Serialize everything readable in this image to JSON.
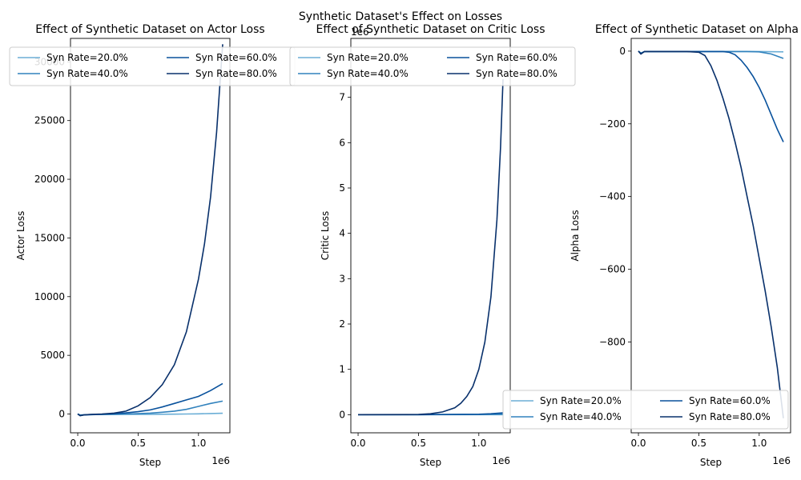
{
  "suptitle": "Synthetic Dataset's Effect on Losses",
  "palette": [
    "#6baed6",
    "#3182bd",
    "#08519c",
    "#08306b"
  ],
  "chart_data": [
    {
      "type": "line",
      "title": "Effect of Synthetic Dataset on Actor Loss",
      "xlabel": "Step",
      "ylabel": "Actor Loss",
      "x_multiplier": "1e6",
      "y_multiplier": "",
      "xlim": [
        -0.06,
        1.26
      ],
      "ylim": [
        -1600,
        32000
      ],
      "xticks": [
        0.0,
        0.5,
        1.0
      ],
      "xtick_labels": [
        "0.0",
        "0.5",
        "1.0"
      ],
      "yticks": [
        0,
        5000,
        10000,
        15000,
        20000,
        25000,
        30000
      ],
      "ytick_labels": [
        "0",
        "5000",
        "10000",
        "15000",
        "20000",
        "25000",
        "30000"
      ],
      "legend": "top-left",
      "series": [
        {
          "name": "Syn Rate=20.0%",
          "x": [
            0,
            0.02,
            0.05,
            0.1,
            0.2,
            0.3,
            0.4,
            0.5,
            0.6,
            0.7,
            0.8,
            0.9,
            1.0,
            1.1,
            1.2
          ],
          "y": [
            0,
            -80,
            -60,
            -50,
            -40,
            -40,
            -35,
            -30,
            -25,
            -20,
            -10,
            0,
            15,
            40,
            60
          ]
        },
        {
          "name": "Syn Rate=40.0%",
          "x": [
            0,
            0.02,
            0.05,
            0.1,
            0.2,
            0.3,
            0.4,
            0.5,
            0.6,
            0.7,
            0.8,
            0.9,
            1.0,
            1.1,
            1.2
          ],
          "y": [
            0,
            -100,
            -70,
            -50,
            -40,
            -20,
            0,
            30,
            80,
            150,
            250,
            400,
            650,
            900,
            1100
          ]
        },
        {
          "name": "Syn Rate=60.0%",
          "x": [
            0,
            0.02,
            0.05,
            0.1,
            0.2,
            0.3,
            0.4,
            0.5,
            0.6,
            0.7,
            0.8,
            0.9,
            1.0,
            1.1,
            1.2
          ],
          "y": [
            0,
            -120,
            -80,
            -50,
            -20,
            30,
            100,
            200,
            350,
            600,
            900,
            1200,
            1500,
            2000,
            2600
          ]
        },
        {
          "name": "Syn Rate=80.0%",
          "x": [
            0,
            0.02,
            0.05,
            0.1,
            0.2,
            0.3,
            0.4,
            0.5,
            0.6,
            0.7,
            0.8,
            0.9,
            1.0,
            1.05,
            1.1,
            1.15,
            1.2
          ],
          "y": [
            0,
            -150,
            -80,
            -30,
            0,
            80,
            250,
            700,
            1400,
            2500,
            4200,
            7000,
            11500,
            14500,
            18500,
            24000,
            31500
          ]
        }
      ]
    },
    {
      "type": "line",
      "title": "Effect of Synthetic Dataset on Critic Loss",
      "xlabel": "Step",
      "ylabel": "Critic Loss",
      "x_multiplier": "1e6",
      "y_multiplier": "1e6",
      "xlim": [
        -0.06,
        1.26
      ],
      "ylim": [
        -0.4,
        8.3
      ],
      "xticks": [
        0.0,
        0.5,
        1.0
      ],
      "xtick_labels": [
        "0.0",
        "0.5",
        "1.0"
      ],
      "yticks": [
        0,
        1,
        2,
        3,
        4,
        5,
        6,
        7
      ],
      "ytick_labels": [
        "0",
        "1",
        "2",
        "3",
        "4",
        "5",
        "6",
        "7"
      ],
      "legend": "top-left",
      "series": [
        {
          "name": "Syn Rate=20.0%",
          "x": [
            0,
            0.5,
            1.0,
            1.2
          ],
          "y": [
            0,
            0,
            0,
            0
          ]
        },
        {
          "name": "Syn Rate=40.0%",
          "x": [
            0,
            0.5,
            1.0,
            1.2
          ],
          "y": [
            0,
            0,
            0.005,
            0.01
          ]
        },
        {
          "name": "Syn Rate=60.0%",
          "x": [
            0,
            0.5,
            1.0,
            1.1,
            1.2
          ],
          "y": [
            0,
            0,
            0.01,
            0.02,
            0.04
          ]
        },
        {
          "name": "Syn Rate=80.0%",
          "x": [
            0,
            0.4,
            0.5,
            0.6,
            0.7,
            0.8,
            0.85,
            0.9,
            0.95,
            1.0,
            1.05,
            1.1,
            1.15,
            1.18,
            1.2
          ],
          "y": [
            0,
            0.002,
            0.005,
            0.02,
            0.06,
            0.15,
            0.25,
            0.4,
            0.62,
            1.0,
            1.6,
            2.6,
            4.3,
            5.9,
            7.4
          ]
        }
      ]
    },
    {
      "type": "line",
      "title": "Effect of Synthetic Dataset on Alpha Loss",
      "xlabel": "Step",
      "ylabel": "Alpha Loss",
      "x_multiplier": "1e6",
      "y_multiplier": "",
      "xlim": [
        -0.06,
        1.26
      ],
      "ylim": [
        -1050,
        35
      ],
      "xticks": [
        0.0,
        0.5,
        1.0
      ],
      "xtick_labels": [
        "0.0",
        "0.5",
        "1.0"
      ],
      "yticks": [
        0,
        -200,
        -400,
        -600,
        -800
      ],
      "ytick_labels": [
        "0",
        "−200",
        "−400",
        "−600",
        "−800"
      ],
      "legend": "bottom-right",
      "series": [
        {
          "name": "Syn Rate=20.0%",
          "x": [
            0,
            0.02,
            0.05,
            0.5,
            1.0,
            1.2
          ],
          "y": [
            0,
            -5,
            -1,
            -1,
            -1,
            -2
          ]
        },
        {
          "name": "Syn Rate=40.0%",
          "x": [
            0,
            0.02,
            0.05,
            0.5,
            0.7,
            0.8,
            0.9,
            1.0,
            1.1,
            1.2
          ],
          "y": [
            0,
            -6,
            -1,
            -1,
            -1,
            -1,
            -1,
            -2,
            -8,
            -20
          ]
        },
        {
          "name": "Syn Rate=60.0%",
          "x": [
            0,
            0.02,
            0.05,
            0.5,
            0.7,
            0.75,
            0.8,
            0.85,
            0.9,
            0.95,
            1.0,
            1.05,
            1.1,
            1.15,
            1.2
          ],
          "y": [
            0,
            -7,
            -1,
            -1,
            -1,
            -3,
            -10,
            -25,
            -45,
            -70,
            -100,
            -135,
            -175,
            -215,
            -250
          ]
        },
        {
          "name": "Syn Rate=80.0%",
          "x": [
            0,
            0.02,
            0.05,
            0.4,
            0.5,
            0.55,
            0.6,
            0.65,
            0.7,
            0.75,
            0.8,
            0.85,
            0.9,
            0.95,
            1.0,
            1.05,
            1.1,
            1.15,
            1.2
          ],
          "y": [
            0,
            -8,
            -1,
            -1,
            -3,
            -12,
            -40,
            -80,
            -130,
            -185,
            -250,
            -320,
            -400,
            -480,
            -570,
            -660,
            -760,
            -870,
            -1010
          ]
        }
      ]
    }
  ]
}
